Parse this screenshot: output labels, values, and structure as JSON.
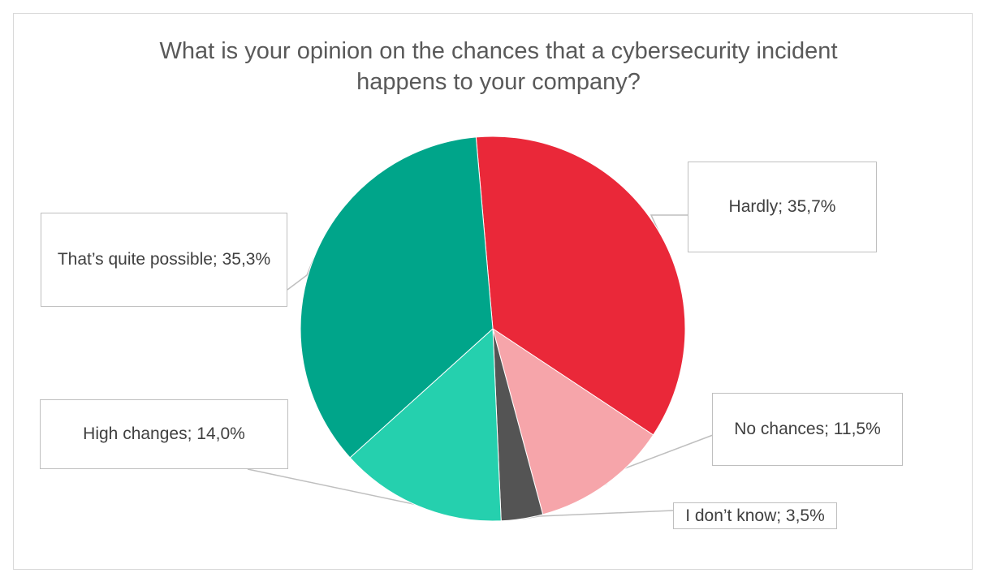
{
  "chart_data": {
    "type": "pie",
    "title": "What is your opinion on the chances that a cybersecurity incident\nhappens to your company?",
    "slices": [
      {
        "category": "Hardly",
        "value": 35.7,
        "display": "Hardly; 35,7%",
        "color": "#EA2839"
      },
      {
        "category": "No chances",
        "value": 11.5,
        "display": "No chances; 11,5%",
        "color": "#F6A5AA"
      },
      {
        "category": "I don’t know",
        "value": 3.5,
        "display": "I don’t know; 3,5%",
        "color": "#545454"
      },
      {
        "category": "High changes",
        "value": 14.0,
        "display": "High changes; 14,0%",
        "color": "#25D0AE"
      },
      {
        "category": "That’s quite possible",
        "value": 35.3,
        "display": "That’s quite possible; 35,3%",
        "color": "#00A58A"
      }
    ],
    "start_angle_deg": -5,
    "direction": "clockwise",
    "legend": "none",
    "labels": "callouts"
  }
}
